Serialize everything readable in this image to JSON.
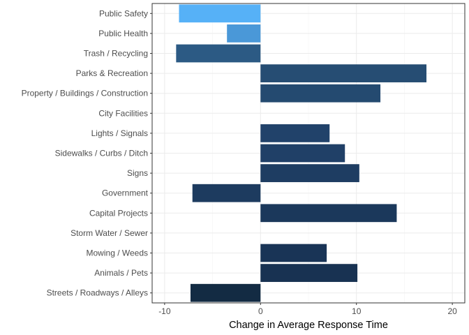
{
  "chart_data": {
    "type": "bar",
    "orientation": "horizontal",
    "title": "",
    "xlabel": "Change in Average Response Time",
    "ylabel": "",
    "xlim": [
      -11.3,
      21.3
    ],
    "xticks": [
      -10,
      0,
      10,
      20
    ],
    "grid": true,
    "legend": "none",
    "categories": [
      "Public Safety",
      "Public Health",
      "Trash / Recycling",
      "Parks & Recreation",
      "Property / Buildings / Construction",
      "City Facilities",
      "Lights / Signals",
      "Sidewalks / Curbs / Ditch",
      "Signs",
      "Government",
      "Capital Projects",
      "Storm Water / Sewer",
      "Mowing / Weeds",
      "Animals / Pets",
      "Streets / Roadways / Alleys"
    ],
    "values": [
      -8.5,
      -3.5,
      -8.8,
      17.3,
      12.5,
      0,
      7.2,
      8.8,
      10.3,
      -7.1,
      14.2,
      0,
      6.9,
      10.1,
      -7.3
    ],
    "colors": [
      "#56b1f7",
      "#4a98d8",
      "#2c5a84",
      "#264d73",
      "#244a70",
      "#23476c",
      "#21426a",
      "#204067",
      "#1e3d62",
      "#1d3b5f",
      "#1b385b",
      "#1a3658",
      "#193456",
      "#183252",
      "#132b43"
    ]
  }
}
